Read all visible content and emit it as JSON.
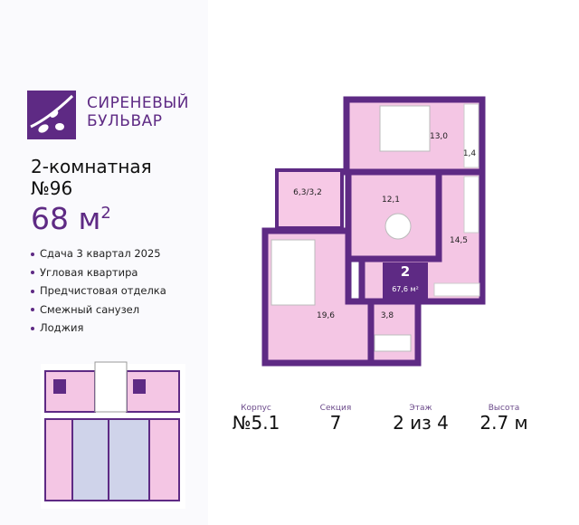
{
  "brand": {
    "line1": "СИРЕНЕВЫЙ",
    "line2": "БУЛЬВАР"
  },
  "apartment": {
    "type": "2-комнатная",
    "number": "№96",
    "area": "68 м",
    "area_sup": "2"
  },
  "features": [
    "Сдача 3 квартал 2025",
    "Угловая квартира",
    "Предчистовая отделка",
    "Смежный санузел",
    "Лоджия"
  ],
  "plan": {
    "rooms": [
      "13,0",
      "1,4",
      "6,3/3,2",
      "12,1",
      "14,5",
      "19,6",
      "3,8"
    ],
    "badge_rooms": "2",
    "badge_area": "67,6 м²"
  },
  "stats": [
    {
      "label": "Корпус",
      "value": "№5.1"
    },
    {
      "label": "Секция",
      "value": "7"
    },
    {
      "label": "Этаж",
      "value": "2 из 4"
    },
    {
      "label": "Высота",
      "value": "2.7 м"
    }
  ],
  "colors": {
    "accent": "#5e2a84",
    "room_fill": "#f4c6e4",
    "wall": "#5e2a84"
  }
}
